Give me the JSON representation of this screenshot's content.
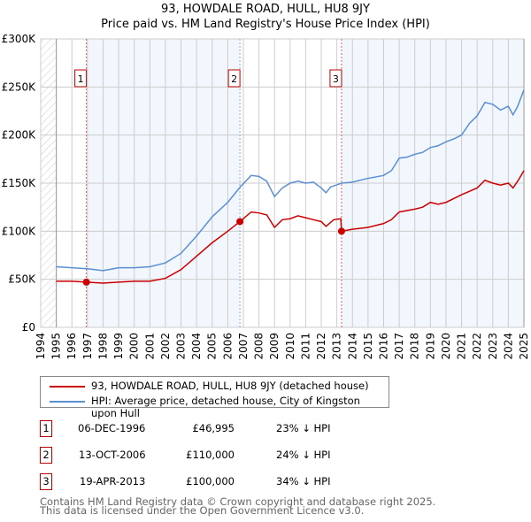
{
  "chart_data": {
    "type": "line",
    "title": "93, HOWDALE ROAD, HULL, HU8 9JY",
    "subtitle": "Price paid vs. HM Land Registry's House Price Index (HPI)",
    "xlim": [
      1994,
      2025
    ],
    "ylim": [
      0,
      300000
    ],
    "x_ticks": [
      "1994",
      "1995",
      "1996",
      "1997",
      "1998",
      "1999",
      "2000",
      "2001",
      "2002",
      "2003",
      "2004",
      "2005",
      "2006",
      "2007",
      "2008",
      "2009",
      "2010",
      "2011",
      "2012",
      "2013",
      "2014",
      "2015",
      "2016",
      "2017",
      "2018",
      "2019",
      "2020",
      "2021",
      "2022",
      "2023",
      "2024",
      "2025"
    ],
    "y_ticks": [
      {
        "v": 0,
        "label": "£0"
      },
      {
        "v": 50000,
        "label": "£50K"
      },
      {
        "v": 100000,
        "label": "£100K"
      },
      {
        "v": 150000,
        "label": "£150K"
      },
      {
        "v": 200000,
        "label": "£200K"
      },
      {
        "v": 250000,
        "label": "£250K"
      },
      {
        "v": 300000,
        "label": "£300K"
      }
    ],
    "grid": true,
    "series": [
      {
        "name": "93, HOWDALE ROAD, HULL, HU8 9JY (detached house)",
        "color": "#cc0000",
        "x": [
          1995,
          1996,
          1996.93,
          1998,
          1999,
          2000,
          2001,
          2002,
          2003,
          2004,
          2005,
          2006,
          2006.78,
          2007.5,
          2008,
          2008.5,
          2009,
          2009.5,
          2010,
          2010.5,
          2011,
          2011.5,
          2012,
          2012.3,
          2012.8,
          2013.25,
          2013.3,
          2014,
          2015,
          2016,
          2016.5,
          2017,
          2018,
          2018.5,
          2019,
          2019.5,
          2020,
          2021,
          2022,
          2022.5,
          2023,
          2023.5,
          2024,
          2024.3,
          2024.6,
          2025
        ],
        "y": [
          48000,
          48000,
          46995,
          46000,
          47000,
          48000,
          48000,
          51000,
          60000,
          74000,
          88000,
          100000,
          110000,
          120000,
          119000,
          117000,
          104000,
          112000,
          113000,
          116000,
          114000,
          112000,
          110000,
          105000,
          112000,
          113000,
          100000,
          102000,
          104000,
          108000,
          112000,
          120000,
          123000,
          125000,
          130000,
          128000,
          130000,
          138000,
          145000,
          153000,
          150000,
          148000,
          150000,
          145000,
          152000,
          163000
        ]
      },
      {
        "name": "HPI: Average price, detached house, City of Kingston upon Hull",
        "color": "#5b8fd4",
        "x": [
          1995,
          1996,
          1997,
          1998,
          1999,
          2000,
          2001,
          2002,
          2003,
          2004,
          2005,
          2006,
          2006.8,
          2007.5,
          2008,
          2008.5,
          2009,
          2009.5,
          2010,
          2010.5,
          2011,
          2011.5,
          2012,
          2012.3,
          2012.6,
          2013.3,
          2014,
          2015,
          2016,
          2016.5,
          2017,
          2017.5,
          2018,
          2018.5,
          2019,
          2019.5,
          2020,
          2020.5,
          2021,
          2021.5,
          2022,
          2022.5,
          2023,
          2023.5,
          2024,
          2024.3,
          2024.6,
          2025
        ],
        "y": [
          63000,
          62000,
          61000,
          59000,
          62000,
          62000,
          63000,
          67000,
          77000,
          95000,
          115000,
          130000,
          146000,
          158000,
          157000,
          152000,
          136000,
          145000,
          150000,
          152000,
          150000,
          151000,
          145000,
          140000,
          146000,
          150000,
          151000,
          155000,
          158000,
          163000,
          176000,
          177000,
          180000,
          182000,
          187000,
          189000,
          193000,
          196000,
          200000,
          212000,
          220000,
          234000,
          232000,
          226000,
          230000,
          221000,
          230000,
          247000
        ]
      }
    ],
    "sales": [
      {
        "n": "1",
        "x": 1996.93,
        "y": 46995
      },
      {
        "n": "2",
        "x": 2006.78,
        "y": 110000
      },
      {
        "n": "3",
        "x": 2013.3,
        "y": 100000
      }
    ],
    "legend_placement": "bottom"
  },
  "table": [
    {
      "n": "1",
      "date": "06-DEC-1996",
      "price": "£46,995",
      "hpi": "23% ↓ HPI"
    },
    {
      "n": "2",
      "date": "13-OCT-2006",
      "price": "£110,000",
      "hpi": "24% ↓ HPI"
    },
    {
      "n": "3",
      "date": "19-APR-2013",
      "price": "£100,000",
      "hpi": "34% ↓ HPI"
    }
  ],
  "footer": [
    "Contains HM Land Registry data © Crown copyright and database right 2025.",
    "This data is licensed under the Open Government Licence v3.0."
  ]
}
